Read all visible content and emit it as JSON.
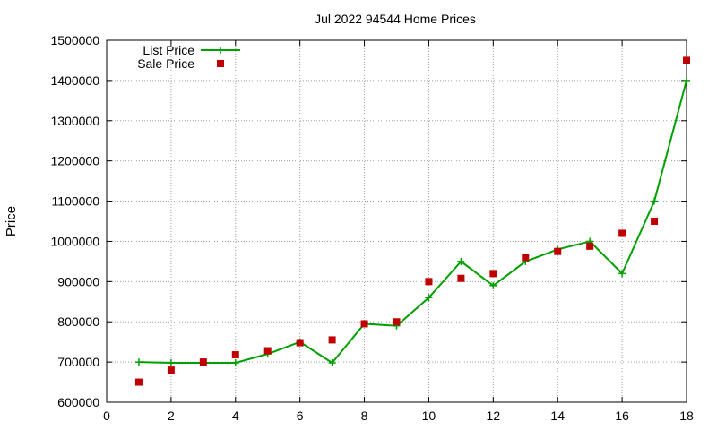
{
  "chart_data": {
    "type": "line",
    "title": "Jul 2022 94544 Home Prices",
    "xlabel": "",
    "ylabel": "Price",
    "xlim": [
      0,
      18
    ],
    "ylim": [
      600000,
      1500000
    ],
    "xticks": [
      0,
      2,
      4,
      6,
      8,
      10,
      12,
      14,
      16,
      18
    ],
    "yticks": [
      600000,
      700000,
      800000,
      900000,
      1000000,
      1100000,
      1200000,
      1300000,
      1400000,
      1500000
    ],
    "grid": true,
    "legend_position": "top-left",
    "series": [
      {
        "name": "List Price",
        "style": "line-with-plus-markers",
        "color": "#00a000",
        "x": [
          1,
          2,
          3,
          4,
          5,
          6,
          7,
          8,
          9,
          10,
          11,
          12,
          13,
          14,
          15,
          16,
          17,
          18
        ],
        "values": [
          700000,
          698000,
          698000,
          698000,
          720000,
          750000,
          698000,
          795000,
          790000,
          860000,
          950000,
          890000,
          950000,
          980000,
          1000000,
          920000,
          1100000,
          1400000
        ]
      },
      {
        "name": "Sale Price",
        "style": "square-markers",
        "color": "#c00000",
        "x": [
          1,
          2,
          3,
          4,
          5,
          6,
          7,
          8,
          9,
          10,
          11,
          12,
          13,
          14,
          15,
          16,
          17,
          18
        ],
        "values": [
          650000,
          680000,
          700000,
          718000,
          728000,
          748000,
          755000,
          795000,
          800000,
          900000,
          908000,
          920000,
          960000,
          975000,
          988000,
          1020000,
          1050000,
          1450000
        ]
      }
    ]
  }
}
